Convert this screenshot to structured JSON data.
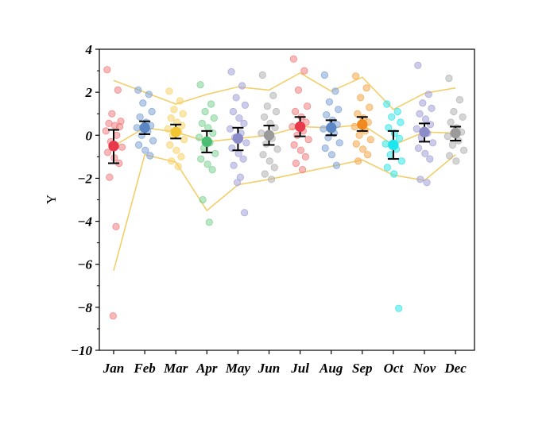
{
  "chart_data": {
    "type": "scatter",
    "title": "",
    "xlabel": "",
    "ylabel": "Y",
    "ylim": [
      -10,
      4
    ],
    "yticks": [
      -10,
      -8,
      -6,
      -4,
      -2,
      0,
      2,
      4
    ],
    "grid": false,
    "legend": "none",
    "categories": [
      "Jan",
      "Feb",
      "Mar",
      "Apr",
      "May",
      "Jun",
      "Jul",
      "Aug",
      "Sep",
      "Oct",
      "Nov",
      "Dec"
    ],
    "colors": [
      "#f08080",
      "#7fa3d6",
      "#f7d36c",
      "#7fd195",
      "#a3a3d8",
      "#b3b3b3",
      "#f08080",
      "#7fa3d6",
      "#f5a84a",
      "#33e6e6",
      "#a3a3d8",
      "#b3b3b3"
    ],
    "mean_colors": [
      "#e8394a",
      "#5b86c4",
      "#f2c633",
      "#4dbd73",
      "#8c8cc8",
      "#9a9a9a",
      "#e8394a",
      "#5b86c4",
      "#f08a1e",
      "#1ee6ee",
      "#8c8cc8",
      "#9a9a9a"
    ],
    "means": [
      -0.5,
      0.35,
      0.15,
      -0.3,
      -0.15,
      0.0,
      0.4,
      0.35,
      0.5,
      -0.45,
      0.15,
      0.1
    ],
    "error_low": [
      -1.3,
      0.05,
      -0.15,
      -0.8,
      -0.7,
      -0.45,
      -0.05,
      0.0,
      0.2,
      -1.1,
      -0.3,
      -0.25
    ],
    "error_high": [
      0.25,
      0.65,
      0.5,
      0.2,
      0.35,
      0.45,
      0.85,
      0.7,
      0.85,
      0.2,
      0.55,
      0.4
    ],
    "envelope_upper": [
      2.55,
      2.0,
      1.45,
      1.9,
      2.25,
      2.1,
      2.9,
      2.05,
      2.7,
      1.2,
      1.95,
      2.2
    ],
    "envelope_lower": [
      -6.3,
      -0.9,
      -1.25,
      -3.5,
      -2.3,
      -2.05,
      -1.75,
      -1.45,
      -1.15,
      -1.85,
      -2.1,
      -0.9
    ],
    "mean_line": [
      -0.5,
      0.35,
      0.15,
      -0.3,
      -0.15,
      0.0,
      0.4,
      0.35,
      0.5,
      -0.45,
      0.15,
      0.1
    ],
    "points": [
      [
        3.05,
        2.1,
        1.0,
        0.65,
        0.55,
        0.45,
        0.4,
        0.2,
        0.0,
        -0.3,
        -0.55,
        -0.8,
        -1.05,
        -1.3,
        -1.95,
        -4.25,
        -8.4
      ],
      [
        2.1,
        1.9,
        1.5,
        1.1,
        0.85,
        0.6,
        0.45,
        0.35,
        0.2,
        0.0,
        -0.25,
        -0.45,
        -0.7,
        -0.95
      ],
      [
        2.05,
        1.6,
        1.2,
        1.0,
        0.8,
        0.6,
        0.45,
        0.3,
        0.15,
        0.0,
        -0.2,
        -0.45,
        -0.7,
        -1.0,
        -1.2,
        -1.45
      ],
      [
        2.35,
        1.45,
        1.1,
        0.8,
        0.55,
        0.35,
        0.1,
        -0.1,
        -0.35,
        -0.6,
        -0.85,
        -1.1,
        -1.35,
        -1.6,
        -3.0,
        -4.05
      ],
      [
        2.95,
        2.3,
        1.75,
        1.4,
        1.1,
        0.8,
        0.55,
        0.3,
        0.1,
        -0.1,
        -0.35,
        -0.6,
        -0.85,
        -1.1,
        -1.4,
        -1.95,
        -2.2,
        -3.6
      ],
      [
        2.8,
        1.85,
        1.35,
        1.1,
        0.85,
        0.55,
        0.35,
        0.1,
        -0.15,
        -0.4,
        -0.65,
        -0.9,
        -1.2,
        -1.5,
        -1.8,
        -2.05
      ],
      [
        3.55,
        3.0,
        2.1,
        1.35,
        1.1,
        0.85,
        0.6,
        0.4,
        0.2,
        0.0,
        -0.2,
        -0.45,
        -0.7,
        -1.0,
        -1.3,
        -1.6
      ],
      [
        2.8,
        2.05,
        1.55,
        1.2,
        0.95,
        0.7,
        0.5,
        0.3,
        0.1,
        -0.1,
        -0.35,
        -0.6,
        -0.9,
        -1.4
      ],
      [
        2.75,
        2.2,
        1.75,
        1.3,
        1.0,
        0.8,
        0.6,
        0.4,
        0.2,
        0.0,
        -0.2,
        -0.4,
        -0.65,
        -0.9,
        -1.2
      ],
      [
        1.45,
        1.1,
        0.85,
        0.6,
        0.35,
        0.1,
        -0.15,
        -0.4,
        -0.65,
        -0.9,
        -1.2,
        -1.5,
        -1.8,
        -8.05
      ],
      [
        3.25,
        1.9,
        1.5,
        1.25,
        1.0,
        0.75,
        0.5,
        0.3,
        0.1,
        -0.1,
        -0.35,
        -0.6,
        -0.85,
        -1.1,
        -2.05,
        -2.2
      ],
      [
        2.65,
        1.65,
        1.1,
        0.85,
        0.6,
        0.35,
        0.15,
        -0.05,
        -0.25,
        -0.45,
        -0.7,
        -0.95,
        -1.2
      ]
    ]
  }
}
